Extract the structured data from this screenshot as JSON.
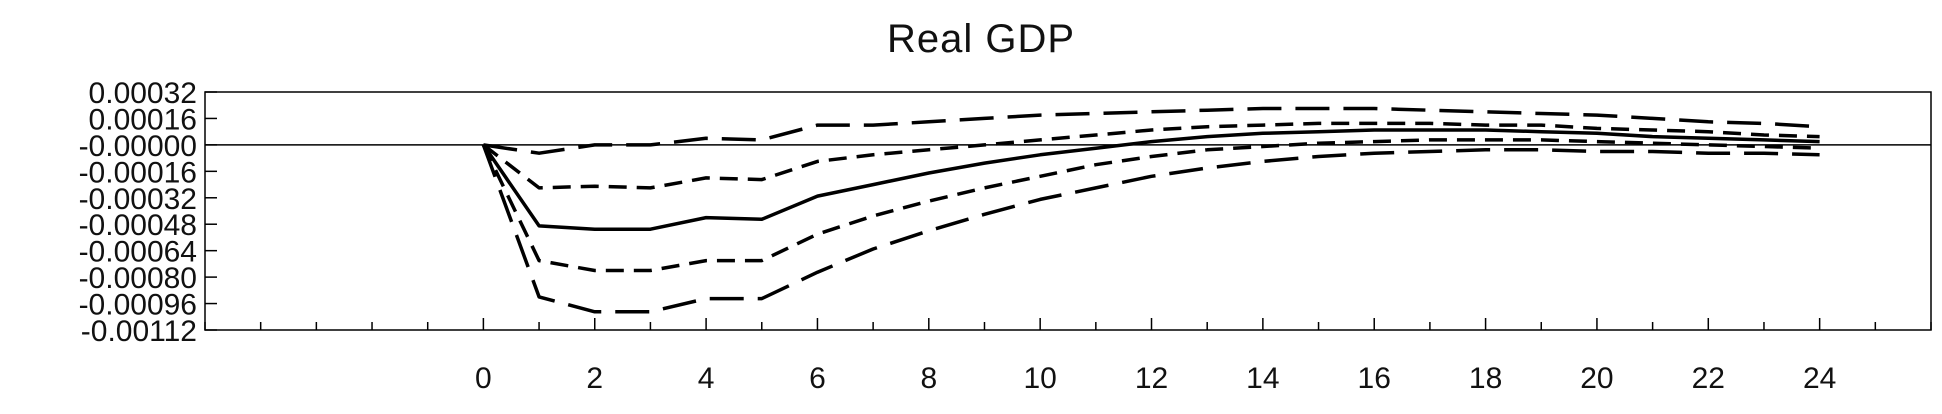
{
  "chart_data": {
    "type": "line",
    "title": "Real GDP",
    "xlabel": "",
    "ylabel": "",
    "grid": false,
    "xlim": [
      -5,
      26
    ],
    "ylim": [
      -0.00112,
      0.00032
    ],
    "x_ticks": [
      "0",
      "2",
      "4",
      "6",
      "8",
      "10",
      "12",
      "14",
      "16",
      "18",
      "20",
      "22",
      "24"
    ],
    "y_ticks": [
      "0.00032",
      "0.00016",
      "-0.00000",
      "-0.00016",
      "-0.00032",
      "-0.00048",
      "-0.00064",
      "-0.00080",
      "-0.00096",
      "-0.00112"
    ],
    "x": [
      0,
      1,
      2,
      3,
      4,
      5,
      6,
      7,
      8,
      9,
      10,
      11,
      12,
      13,
      14,
      15,
      16,
      17,
      18,
      19,
      20,
      21,
      22,
      23,
      24
    ],
    "series": [
      {
        "style": "long-dash",
        "values": [
          0,
          -5e-05,
          0,
          0,
          4e-05,
          3e-05,
          0.00012,
          0.00012,
          0.00014,
          0.00016,
          0.00018,
          0.00019,
          0.0002,
          0.00021,
          0.00022,
          0.00022,
          0.00022,
          0.00021,
          0.0002,
          0.00019,
          0.00018,
          0.00016,
          0.00014,
          0.00013,
          0.00011
        ]
      },
      {
        "style": "short-dash",
        "values": [
          0,
          -0.00026,
          -0.00025,
          -0.00026,
          -0.0002,
          -0.00021,
          -0.0001,
          -6e-05,
          -3e-05,
          0,
          3e-05,
          6e-05,
          9e-05,
          0.00011,
          0.00012,
          0.00013,
          0.00013,
          0.00013,
          0.00012,
          0.00012,
          0.0001,
          9e-05,
          8e-05,
          6e-05,
          5e-05
        ]
      },
      {
        "style": "solid",
        "values": [
          0,
          -0.00049,
          -0.00051,
          -0.00051,
          -0.00044,
          -0.00045,
          -0.00031,
          -0.00024,
          -0.00017,
          -0.00011,
          -6e-05,
          -2e-05,
          2e-05,
          5e-05,
          7e-05,
          8e-05,
          9e-05,
          9e-05,
          9e-05,
          8e-05,
          7e-05,
          5e-05,
          4e-05,
          3e-05,
          2e-05
        ]
      },
      {
        "style": "short-dash",
        "values": [
          0,
          -0.0007,
          -0.00076,
          -0.00076,
          -0.0007,
          -0.0007,
          -0.00054,
          -0.00043,
          -0.00034,
          -0.00026,
          -0.00019,
          -0.00012,
          -7e-05,
          -3e-05,
          -1e-05,
          1e-05,
          2e-05,
          3e-05,
          3e-05,
          3e-05,
          2e-05,
          1e-05,
          0,
          -1e-05,
          -2e-05
        ]
      },
      {
        "style": "long-dash",
        "values": [
          0,
          -0.00092,
          -0.00101,
          -0.00101,
          -0.00093,
          -0.00093,
          -0.00077,
          -0.00063,
          -0.00052,
          -0.00042,
          -0.00033,
          -0.00026,
          -0.00019,
          -0.00014,
          -0.0001,
          -7e-05,
          -5e-05,
          -4e-05,
          -3e-05,
          -3e-05,
          -4e-05,
          -4e-05,
          -5e-05,
          -5e-05,
          -6e-05
        ]
      }
    ]
  }
}
